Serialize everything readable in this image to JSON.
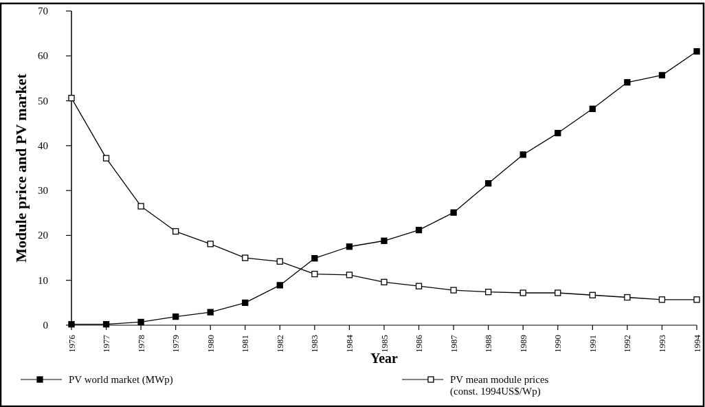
{
  "chart_data": {
    "type": "line",
    "xlabel": "Year",
    "ylabel": "Module price and PV market",
    "x": [
      1976,
      1977,
      1978,
      1979,
      1980,
      1981,
      1982,
      1983,
      1984,
      1985,
      1986,
      1987,
      1988,
      1989,
      1990,
      1991,
      1992,
      1993,
      1994
    ],
    "series": [
      {
        "name": "PV world market (MWp)",
        "color": "#000000",
        "values": [
          0.2,
          0.2,
          0.7,
          1.9,
          2.9,
          5.0,
          8.9,
          14.9,
          17.5,
          18.8,
          21.2,
          25.1,
          31.6,
          38.0,
          42.8,
          48.2,
          54.1,
          55.7,
          61.0
        ]
      },
      {
        "name": "PV mean module prices\n(const. 1994US$/Wp)",
        "color": "#000000",
        "values": [
          50.6,
          37.2,
          26.5,
          20.9,
          18.1,
          15.0,
          14.2,
          11.4,
          11.2,
          9.6,
          8.7,
          7.8,
          7.4,
          7.2,
          7.2,
          6.7,
          6.2,
          5.7,
          5.7
        ]
      }
    ],
    "xlim": [
      1976,
      1994
    ],
    "xticks": [
      1976,
      1977,
      1978,
      1979,
      1980,
      1981,
      1982,
      1983,
      1984,
      1985,
      1986,
      1987,
      1988,
      1989,
      1990,
      1991,
      1992,
      1993,
      1994
    ],
    "ylim": [
      0,
      70
    ],
    "yticks": [
      0,
      10,
      20,
      30,
      40,
      50,
      60,
      70
    ],
    "marker": "square",
    "line_style": "solid",
    "grid": false,
    "legend": "bottom"
  }
}
